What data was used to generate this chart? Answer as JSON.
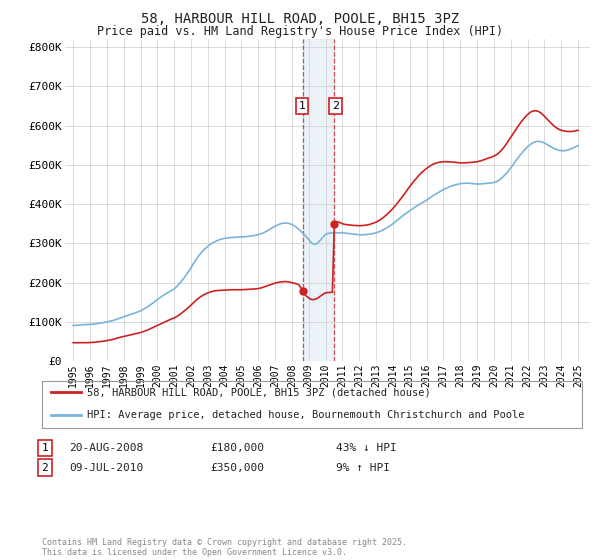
{
  "title": "58, HARBOUR HILL ROAD, POOLE, BH15 3PZ",
  "subtitle": "Price paid vs. HM Land Registry's House Price Index (HPI)",
  "legend_line1": "58, HARBOUR HILL ROAD, POOLE, BH15 3PZ (detached house)",
  "legend_line2": "HPI: Average price, detached house, Bournemouth Christchurch and Poole",
  "footer": "Contains HM Land Registry data © Crown copyright and database right 2025.\nThis data is licensed under the Open Government Licence v3.0.",
  "sale1_date": "20-AUG-2008",
  "sale1_price": "£180,000",
  "sale1_hpi": "43% ↓ HPI",
  "sale2_date": "09-JUL-2010",
  "sale2_price": "£350,000",
  "sale2_hpi": "9% ↑ HPI",
  "sale1_x": 2008.64,
  "sale2_x": 2010.52,
  "sale1_y": 180000,
  "sale2_y": 350000,
  "hpi_color": "#7ab4d8",
  "price_color": "#cc2222",
  "vline_color": "#cc2222",
  "background_color": "#ffffff",
  "grid_color": "#cccccc",
  "ylim": [
    0,
    820000
  ],
  "xlim_start": 1994.5,
  "xlim_end": 2025.7,
  "ytick_values": [
    0,
    100000,
    200000,
    300000,
    400000,
    500000,
    600000,
    700000,
    800000
  ],
  "ytick_labels": [
    "£0",
    "£100K",
    "£200K",
    "£300K",
    "£400K",
    "£500K",
    "£600K",
    "£700K",
    "£800K"
  ],
  "xtick_years": [
    1995,
    1996,
    1997,
    1998,
    1999,
    2000,
    2001,
    2002,
    2003,
    2004,
    2005,
    2006,
    2007,
    2008,
    2009,
    2010,
    2011,
    2012,
    2013,
    2014,
    2015,
    2016,
    2017,
    2018,
    2019,
    2020,
    2021,
    2022,
    2023,
    2024,
    2025
  ],
  "hpi_data": [
    [
      1995.0,
      91000
    ],
    [
      1995.1,
      91500
    ],
    [
      1995.2,
      91200
    ],
    [
      1995.3,
      91800
    ],
    [
      1995.4,
      92000
    ],
    [
      1995.5,
      92500
    ],
    [
      1995.6,
      92800
    ],
    [
      1995.7,
      93000
    ],
    [
      1995.8,
      93200
    ],
    [
      1995.9,
      93500
    ],
    [
      1996.0,
      93800
    ],
    [
      1996.2,
      94500
    ],
    [
      1996.4,
      95500
    ],
    [
      1996.6,
      97000
    ],
    [
      1996.8,
      98500
    ],
    [
      1997.0,
      100000
    ],
    [
      1997.2,
      102000
    ],
    [
      1997.4,
      104000
    ],
    [
      1997.6,
      107000
    ],
    [
      1997.8,
      110000
    ],
    [
      1998.0,
      113000
    ],
    [
      1998.2,
      116000
    ],
    [
      1998.4,
      119000
    ],
    [
      1998.6,
      122000
    ],
    [
      1998.8,
      125000
    ],
    [
      1999.0,
      128000
    ],
    [
      1999.2,
      133000
    ],
    [
      1999.4,
      138000
    ],
    [
      1999.6,
      144000
    ],
    [
      1999.8,
      150000
    ],
    [
      2000.0,
      157000
    ],
    [
      2000.2,
      163000
    ],
    [
      2000.4,
      169000
    ],
    [
      2000.6,
      174000
    ],
    [
      2000.8,
      179000
    ],
    [
      2001.0,
      184000
    ],
    [
      2001.2,
      192000
    ],
    [
      2001.4,
      202000
    ],
    [
      2001.6,
      213000
    ],
    [
      2001.8,
      225000
    ],
    [
      2002.0,
      238000
    ],
    [
      2002.2,
      252000
    ],
    [
      2002.4,
      265000
    ],
    [
      2002.6,
      276000
    ],
    [
      2002.8,
      285000
    ],
    [
      2003.0,
      293000
    ],
    [
      2003.2,
      299000
    ],
    [
      2003.4,
      304000
    ],
    [
      2003.6,
      308000
    ],
    [
      2003.8,
      311000
    ],
    [
      2004.0,
      313000
    ],
    [
      2004.2,
      314000
    ],
    [
      2004.4,
      315000
    ],
    [
      2004.6,
      315500
    ],
    [
      2004.8,
      316000
    ],
    [
      2005.0,
      316500
    ],
    [
      2005.2,
      317000
    ],
    [
      2005.4,
      318000
    ],
    [
      2005.6,
      319000
    ],
    [
      2005.8,
      320500
    ],
    [
      2006.0,
      322000
    ],
    [
      2006.2,
      325000
    ],
    [
      2006.4,
      329000
    ],
    [
      2006.6,
      334000
    ],
    [
      2006.8,
      339000
    ],
    [
      2007.0,
      344000
    ],
    [
      2007.2,
      348000
    ],
    [
      2007.4,
      351000
    ],
    [
      2007.6,
      352000
    ],
    [
      2007.8,
      351000
    ],
    [
      2008.0,
      348000
    ],
    [
      2008.2,
      343000
    ],
    [
      2008.4,
      336000
    ],
    [
      2008.6,
      328000
    ],
    [
      2008.8,
      319000
    ],
    [
      2009.0,
      310000
    ],
    [
      2009.1,
      304000
    ],
    [
      2009.2,
      300000
    ],
    [
      2009.3,
      298000
    ],
    [
      2009.4,
      298000
    ],
    [
      2009.5,
      300000
    ],
    [
      2009.6,
      304000
    ],
    [
      2009.7,
      309000
    ],
    [
      2009.8,
      314000
    ],
    [
      2009.9,
      319000
    ],
    [
      2010.0,
      323000
    ],
    [
      2010.2,
      326000
    ],
    [
      2010.4,
      327000
    ],
    [
      2010.6,
      327000
    ],
    [
      2010.8,
      327000
    ],
    [
      2011.0,
      327000
    ],
    [
      2011.2,
      326000
    ],
    [
      2011.4,
      325000
    ],
    [
      2011.6,
      324000
    ],
    [
      2011.8,
      323000
    ],
    [
      2012.0,
      322000
    ],
    [
      2012.2,
      322000
    ],
    [
      2012.4,
      322500
    ],
    [
      2012.6,
      323500
    ],
    [
      2012.8,
      325000
    ],
    [
      2013.0,
      327000
    ],
    [
      2013.2,
      330000
    ],
    [
      2013.4,
      334000
    ],
    [
      2013.6,
      339000
    ],
    [
      2013.8,
      344000
    ],
    [
      2014.0,
      350000
    ],
    [
      2014.2,
      357000
    ],
    [
      2014.4,
      364000
    ],
    [
      2014.6,
      371000
    ],
    [
      2014.8,
      377000
    ],
    [
      2015.0,
      383000
    ],
    [
      2015.2,
      389000
    ],
    [
      2015.4,
      395000
    ],
    [
      2015.6,
      400000
    ],
    [
      2015.8,
      405000
    ],
    [
      2016.0,
      410000
    ],
    [
      2016.2,
      416000
    ],
    [
      2016.4,
      422000
    ],
    [
      2016.6,
      427000
    ],
    [
      2016.8,
      432000
    ],
    [
      2017.0,
      437000
    ],
    [
      2017.2,
      441000
    ],
    [
      2017.4,
      445000
    ],
    [
      2017.6,
      448000
    ],
    [
      2017.8,
      450000
    ],
    [
      2018.0,
      452000
    ],
    [
      2018.2,
      453000
    ],
    [
      2018.4,
      453500
    ],
    [
      2018.6,
      453000
    ],
    [
      2018.8,
      452000
    ],
    [
      2019.0,
      451000
    ],
    [
      2019.2,
      451500
    ],
    [
      2019.4,
      452000
    ],
    [
      2019.6,
      453000
    ],
    [
      2019.8,
      454000
    ],
    [
      2020.0,
      455000
    ],
    [
      2020.2,
      458000
    ],
    [
      2020.4,
      464000
    ],
    [
      2020.6,
      472000
    ],
    [
      2020.8,
      481000
    ],
    [
      2021.0,
      492000
    ],
    [
      2021.2,
      504000
    ],
    [
      2021.4,
      516000
    ],
    [
      2021.6,
      527000
    ],
    [
      2021.8,
      537000
    ],
    [
      2022.0,
      546000
    ],
    [
      2022.2,
      553000
    ],
    [
      2022.4,
      558000
    ],
    [
      2022.6,
      560000
    ],
    [
      2022.8,
      559000
    ],
    [
      2023.0,
      556000
    ],
    [
      2023.2,
      551000
    ],
    [
      2023.4,
      546000
    ],
    [
      2023.6,
      541000
    ],
    [
      2023.8,
      538000
    ],
    [
      2024.0,
      536000
    ],
    [
      2024.2,
      536000
    ],
    [
      2024.4,
      538000
    ],
    [
      2024.6,
      541000
    ],
    [
      2024.8,
      545000
    ],
    [
      2025.0,
      549000
    ]
  ],
  "price_data": [
    [
      1995.0,
      47000
    ],
    [
      1995.1,
      47200
    ],
    [
      1995.2,
      47000
    ],
    [
      1995.3,
      47100
    ],
    [
      1995.4,
      47000
    ],
    [
      1995.5,
      47200
    ],
    [
      1995.6,
      47000
    ],
    [
      1995.7,
      47500
    ],
    [
      1995.8,
      47000
    ],
    [
      1995.9,
      47200
    ],
    [
      1996.0,
      47500
    ],
    [
      1996.2,
      48000
    ],
    [
      1996.4,
      49000
    ],
    [
      1996.6,
      50000
    ],
    [
      1996.8,
      51000
    ],
    [
      1997.0,
      52500
    ],
    [
      1997.2,
      54000
    ],
    [
      1997.4,
      56000
    ],
    [
      1997.6,
      58500
    ],
    [
      1997.8,
      61000
    ],
    [
      1998.0,
      63000
    ],
    [
      1998.2,
      65000
    ],
    [
      1998.4,
      67000
    ],
    [
      1998.6,
      69000
    ],
    [
      1998.8,
      71000
    ],
    [
      1999.0,
      73000
    ],
    [
      1999.2,
      76000
    ],
    [
      1999.4,
      79000
    ],
    [
      1999.6,
      83000
    ],
    [
      1999.8,
      87000
    ],
    [
      2000.0,
      91000
    ],
    [
      2000.2,
      95000
    ],
    [
      2000.4,
      99000
    ],
    [
      2000.6,
      103000
    ],
    [
      2000.8,
      107000
    ],
    [
      2001.0,
      110000
    ],
    [
      2001.2,
      115000
    ],
    [
      2001.4,
      121000
    ],
    [
      2001.6,
      128000
    ],
    [
      2001.8,
      135000
    ],
    [
      2002.0,
      143000
    ],
    [
      2002.2,
      151000
    ],
    [
      2002.4,
      159000
    ],
    [
      2002.6,
      165000
    ],
    [
      2002.8,
      170000
    ],
    [
      2003.0,
      174000
    ],
    [
      2003.2,
      177000
    ],
    [
      2003.4,
      179000
    ],
    [
      2003.6,
      180000
    ],
    [
      2003.8,
      180500
    ],
    [
      2004.0,
      181000
    ],
    [
      2004.2,
      181500
    ],
    [
      2004.4,
      182000
    ],
    [
      2004.6,
      182000
    ],
    [
      2004.8,
      182000
    ],
    [
      2005.0,
      182000
    ],
    [
      2005.2,
      182500
    ],
    [
      2005.4,
      183000
    ],
    [
      2005.6,
      183500
    ],
    [
      2005.8,
      184000
    ],
    [
      2006.0,
      185000
    ],
    [
      2006.2,
      187000
    ],
    [
      2006.4,
      190000
    ],
    [
      2006.6,
      193000
    ],
    [
      2006.8,
      196000
    ],
    [
      2007.0,
      199000
    ],
    [
      2007.2,
      201000
    ],
    [
      2007.4,
      202000
    ],
    [
      2007.6,
      203000
    ],
    [
      2007.8,
      202000
    ],
    [
      2008.0,
      200000
    ],
    [
      2008.2,
      198000
    ],
    [
      2008.4,
      195000
    ],
    [
      2008.64,
      180000
    ],
    [
      2008.8,
      168000
    ],
    [
      2009.0,
      161000
    ],
    [
      2009.1,
      158000
    ],
    [
      2009.2,
      157000
    ],
    [
      2009.3,
      157000
    ],
    [
      2009.4,
      158000
    ],
    [
      2009.5,
      160000
    ],
    [
      2009.6,
      163000
    ],
    [
      2009.7,
      166000
    ],
    [
      2009.8,
      169000
    ],
    [
      2009.9,
      172000
    ],
    [
      2010.0,
      174000
    ],
    [
      2010.2,
      175000
    ],
    [
      2010.4,
      175500
    ],
    [
      2010.52,
      350000
    ],
    [
      2010.7,
      355000
    ],
    [
      2010.8,
      354000
    ],
    [
      2010.9,
      352000
    ],
    [
      2011.0,
      350000
    ],
    [
      2011.2,
      348000
    ],
    [
      2011.4,
      347000
    ],
    [
      2011.6,
      346000
    ],
    [
      2011.8,
      345500
    ],
    [
      2012.0,
      345000
    ],
    [
      2012.2,
      345500
    ],
    [
      2012.4,
      346500
    ],
    [
      2012.6,
      348000
    ],
    [
      2012.8,
      351000
    ],
    [
      2013.0,
      354000
    ],
    [
      2013.2,
      359000
    ],
    [
      2013.4,
      365000
    ],
    [
      2013.6,
      372000
    ],
    [
      2013.8,
      380000
    ],
    [
      2014.0,
      389000
    ],
    [
      2014.2,
      399000
    ],
    [
      2014.4,
      410000
    ],
    [
      2014.6,
      421000
    ],
    [
      2014.8,
      433000
    ],
    [
      2015.0,
      445000
    ],
    [
      2015.2,
      456000
    ],
    [
      2015.4,
      466000
    ],
    [
      2015.6,
      476000
    ],
    [
      2015.8,
      484000
    ],
    [
      2016.0,
      491000
    ],
    [
      2016.2,
      497000
    ],
    [
      2016.4,
      502000
    ],
    [
      2016.6,
      505000
    ],
    [
      2016.8,
      507000
    ],
    [
      2017.0,
      508000
    ],
    [
      2017.2,
      508000
    ],
    [
      2017.4,
      507500
    ],
    [
      2017.6,
      507000
    ],
    [
      2017.8,
      506000
    ],
    [
      2018.0,
      505000
    ],
    [
      2018.2,
      505000
    ],
    [
      2018.4,
      505500
    ],
    [
      2018.6,
      506000
    ],
    [
      2018.8,
      507000
    ],
    [
      2019.0,
      508000
    ],
    [
      2019.2,
      510000
    ],
    [
      2019.4,
      513000
    ],
    [
      2019.6,
      516000
    ],
    [
      2019.8,
      519000
    ],
    [
      2020.0,
      522000
    ],
    [
      2020.2,
      527000
    ],
    [
      2020.4,
      535000
    ],
    [
      2020.6,
      545000
    ],
    [
      2020.8,
      557000
    ],
    [
      2021.0,
      570000
    ],
    [
      2021.2,
      583000
    ],
    [
      2021.4,
      596000
    ],
    [
      2021.6,
      608000
    ],
    [
      2021.8,
      619000
    ],
    [
      2022.0,
      628000
    ],
    [
      2022.2,
      635000
    ],
    [
      2022.4,
      638000
    ],
    [
      2022.6,
      637000
    ],
    [
      2022.8,
      632000
    ],
    [
      2023.0,
      624000
    ],
    [
      2023.2,
      615000
    ],
    [
      2023.4,
      606000
    ],
    [
      2023.6,
      598000
    ],
    [
      2023.8,
      592000
    ],
    [
      2024.0,
      588000
    ],
    [
      2024.2,
      586000
    ],
    [
      2024.4,
      585000
    ],
    [
      2024.6,
      585000
    ],
    [
      2024.8,
      586000
    ],
    [
      2025.0,
      588000
    ]
  ]
}
